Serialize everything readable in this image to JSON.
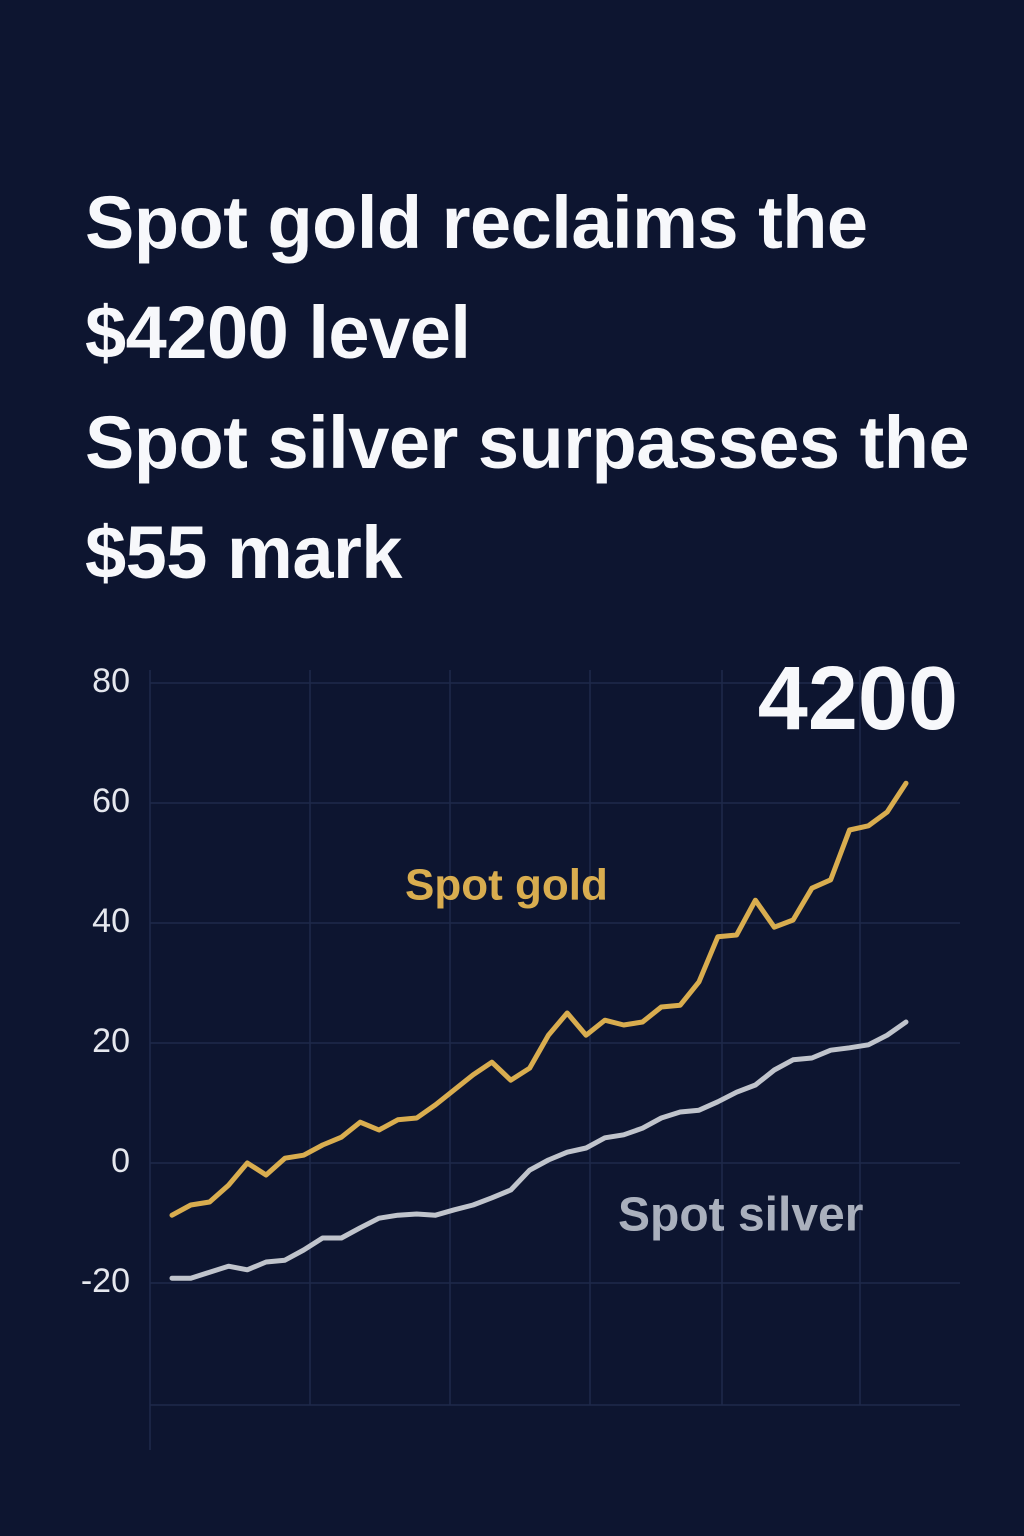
{
  "chart_data": {
    "type": "line",
    "title": "Spot gold reclaims the $4200 level",
    "subtitle": "Spot silver surpasses the $55 mark",
    "annotation": "4200",
    "categories": [
      null,
      null,
      null,
      null,
      null,
      null,
      null,
      null,
      null,
      null,
      null,
      null,
      null,
      null,
      null,
      null,
      null,
      null,
      null,
      null,
      null,
      null,
      null,
      null,
      null,
      null,
      null,
      null,
      null,
      null,
      null,
      null,
      null,
      null,
      null,
      null,
      null,
      null,
      null,
      null
    ],
    "series": [
      {
        "name": "Spot gold",
        "color": "#d9ad4f",
        "values": [
          -8.7,
          -7,
          -6.5,
          -3.7,
          0,
          -2,
          0.8,
          1.3,
          3,
          4.3,
          6.8,
          5.5,
          7.2,
          7.5,
          9.7,
          12.2,
          14.7,
          16.8,
          13.8,
          15.8,
          21.3,
          25,
          21.3,
          23.8,
          23,
          23.5,
          26,
          26.3,
          30.2,
          37.7,
          38,
          43.8,
          39.3,
          40.5,
          45.8,
          47.2,
          55.5,
          56.2,
          58.5,
          63.3
        ]
      },
      {
        "name": "Spot silver",
        "color": "#c0c4cc",
        "values": [
          -19.2,
          -19.2,
          -18.2,
          -17.2,
          -17.8,
          -16.5,
          -16.2,
          -14.5,
          -12.5,
          -12.5,
          -10.8,
          -9.2,
          -8.7,
          -8.5,
          -8.7,
          -7.8,
          -7,
          -5.8,
          -4.5,
          -1.2,
          0.5,
          1.8,
          2.5,
          4.2,
          4.7,
          5.8,
          7.5,
          8.5,
          8.8,
          10.2,
          11.8,
          13,
          15.5,
          17.2,
          17.5,
          18.8,
          19.2,
          19.7,
          21.3,
          23.5
        ]
      }
    ],
    "ylim": [
      -40,
      80
    ],
    "yticks": [
      -20,
      0,
      20,
      40,
      60,
      80
    ],
    "grid": true
  }
}
